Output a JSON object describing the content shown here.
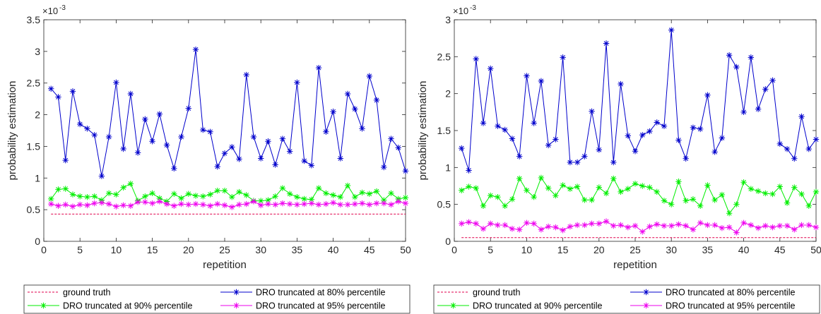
{
  "chart_data": [
    {
      "type": "line",
      "xlabel": "repetition",
      "ylabel": "probability estimation",
      "exponent_label": "×10",
      "exponent_power": "-3",
      "xlim": [
        0,
        50
      ],
      "ylim": [
        0,
        3.5
      ],
      "xticks": [
        0,
        5,
        10,
        15,
        20,
        25,
        30,
        35,
        40,
        45,
        50
      ],
      "yticks": [
        0,
        0.5,
        1,
        1.5,
        2,
        2.5,
        3,
        3.5
      ],
      "ytick_labels": [
        "0",
        "0.5",
        "1",
        "1.5",
        "2",
        "2.5",
        "3",
        "3.5"
      ],
      "grid": false,
      "legend_position": "bottom",
      "x": [
        1,
        2,
        3,
        4,
        5,
        6,
        7,
        8,
        9,
        10,
        11,
        12,
        13,
        14,
        15,
        16,
        17,
        18,
        19,
        20,
        21,
        22,
        23,
        24,
        25,
        26,
        27,
        28,
        29,
        30,
        31,
        32,
        33,
        34,
        35,
        36,
        37,
        38,
        39,
        40,
        41,
        42,
        43,
        44,
        45,
        46,
        47,
        48,
        49,
        50
      ],
      "series": [
        {
          "name": "ground truth",
          "color": "#e0004c",
          "style": "dashed",
          "marker": "none",
          "values": [
            0.43,
            0.43,
            0.43,
            0.43,
            0.43,
            0.43,
            0.43,
            0.43,
            0.43,
            0.43,
            0.43,
            0.43,
            0.43,
            0.43,
            0.43,
            0.43,
            0.43,
            0.43,
            0.43,
            0.43,
            0.43,
            0.43,
            0.43,
            0.43,
            0.43,
            0.43,
            0.43,
            0.43,
            0.43,
            0.43,
            0.43,
            0.43,
            0.43,
            0.43,
            0.43,
            0.43,
            0.43,
            0.43,
            0.43,
            0.43,
            0.43,
            0.43,
            0.43,
            0.43,
            0.43,
            0.43,
            0.43,
            0.43,
            0.43,
            0.43
          ]
        },
        {
          "name": "DRO truncated at 80% percentile",
          "color": "#0000cc",
          "style": "solid",
          "marker": "star",
          "values": [
            2.41,
            2.28,
            1.28,
            2.37,
            1.85,
            1.78,
            1.68,
            1.03,
            1.65,
            2.51,
            1.46,
            2.33,
            1.4,
            1.93,
            1.58,
            2.01,
            1.52,
            1.15,
            1.65,
            2.1,
            3.03,
            1.76,
            1.73,
            1.18,
            1.39,
            1.49,
            1.3,
            2.63,
            1.65,
            1.31,
            1.58,
            1.21,
            1.62,
            1.42,
            2.51,
            1.27,
            1.2,
            2.74,
            1.73,
            2.05,
            1.31,
            2.33,
            2.09,
            1.78,
            2.61,
            2.23,
            1.17,
            1.62,
            1.48,
            1.11
          ]
        },
        {
          "name": "DRO truncated at 90% percentile",
          "color": "#00ee00",
          "style": "solid",
          "marker": "star",
          "values": [
            0.67,
            0.82,
            0.83,
            0.74,
            0.71,
            0.7,
            0.71,
            0.65,
            0.76,
            0.74,
            0.85,
            0.91,
            0.64,
            0.71,
            0.76,
            0.68,
            0.63,
            0.75,
            0.68,
            0.75,
            0.72,
            0.71,
            0.74,
            0.8,
            0.8,
            0.7,
            0.78,
            0.73,
            0.64,
            0.64,
            0.65,
            0.71,
            0.84,
            0.75,
            0.7,
            0.67,
            0.66,
            0.84,
            0.76,
            0.73,
            0.7,
            0.88,
            0.7,
            0.77,
            0.75,
            0.79,
            0.65,
            0.76,
            0.67,
            0.69
          ]
        },
        {
          "name": "DRO truncated at 95% percentile",
          "color": "#ee00ee",
          "style": "solid",
          "marker": "star",
          "values": [
            0.59,
            0.56,
            0.58,
            0.55,
            0.58,
            0.57,
            0.6,
            0.61,
            0.59,
            0.55,
            0.57,
            0.56,
            0.62,
            0.62,
            0.6,
            0.63,
            0.59,
            0.56,
            0.59,
            0.58,
            0.59,
            0.58,
            0.56,
            0.59,
            0.57,
            0.54,
            0.58,
            0.59,
            0.63,
            0.57,
            0.59,
            0.58,
            0.6,
            0.59,
            0.58,
            0.59,
            0.6,
            0.58,
            0.59,
            0.61,
            0.58,
            0.58,
            0.59,
            0.6,
            0.58,
            0.6,
            0.6,
            0.58,
            0.63,
            0.6
          ]
        }
      ]
    },
    {
      "type": "line",
      "xlabel": "repetition",
      "ylabel": "probability estimation",
      "exponent_label": "×10",
      "exponent_power": "-3",
      "xlim": [
        0,
        50
      ],
      "ylim": [
        0,
        3
      ],
      "xticks": [
        0,
        5,
        10,
        15,
        20,
        25,
        30,
        35,
        40,
        45,
        50
      ],
      "yticks": [
        0,
        0.5,
        1,
        1.5,
        2,
        2.5,
        3
      ],
      "ytick_labels": [
        "0",
        "0.5",
        "1",
        "1.5",
        "2",
        "2.5",
        "3"
      ],
      "grid": false,
      "legend_position": "bottom",
      "x": [
        1,
        2,
        3,
        4,
        5,
        6,
        7,
        8,
        9,
        10,
        11,
        12,
        13,
        14,
        15,
        16,
        17,
        18,
        19,
        20,
        21,
        22,
        23,
        24,
        25,
        26,
        27,
        28,
        29,
        30,
        31,
        32,
        33,
        34,
        35,
        36,
        37,
        38,
        39,
        40,
        41,
        42,
        43,
        44,
        45,
        46,
        47,
        48,
        49,
        50
      ],
      "series": [
        {
          "name": "ground truth",
          "color": "#e0004c",
          "style": "dashed",
          "marker": "none",
          "values": [
            0.05,
            0.05,
            0.05,
            0.05,
            0.05,
            0.05,
            0.05,
            0.05,
            0.05,
            0.05,
            0.05,
            0.05,
            0.05,
            0.05,
            0.05,
            0.05,
            0.05,
            0.05,
            0.05,
            0.05,
            0.05,
            0.05,
            0.05,
            0.05,
            0.05,
            0.05,
            0.05,
            0.05,
            0.05,
            0.05,
            0.05,
            0.05,
            0.05,
            0.05,
            0.05,
            0.05,
            0.05,
            0.05,
            0.05,
            0.05,
            0.05,
            0.05,
            0.05,
            0.05,
            0.05,
            0.05,
            0.05,
            0.05,
            0.05,
            0.05
          ]
        },
        {
          "name": "DRO truncated at 80% percentile",
          "color": "#0000cc",
          "style": "solid",
          "marker": "star",
          "values": [
            1.26,
            0.96,
            2.47,
            1.6,
            2.34,
            1.56,
            1.51,
            1.39,
            1.15,
            2.24,
            1.6,
            2.17,
            1.3,
            1.38,
            2.49,
            1.07,
            1.07,
            1.15,
            1.76,
            1.24,
            2.68,
            1.07,
            2.13,
            1.43,
            1.22,
            1.44,
            1.49,
            1.61,
            1.56,
            2.86,
            1.37,
            1.12,
            1.54,
            1.52,
            1.98,
            1.21,
            1.4,
            2.52,
            2.36,
            1.75,
            2.49,
            1.79,
            2.06,
            2.18,
            1.32,
            1.25,
            1.12,
            1.69,
            1.25,
            1.38
          ]
        },
        {
          "name": "DRO truncated at 90% percentile",
          "color": "#00ee00",
          "style": "solid",
          "marker": "star",
          "values": [
            0.69,
            0.74,
            0.72,
            0.48,
            0.62,
            0.6,
            0.48,
            0.57,
            0.85,
            0.69,
            0.6,
            0.86,
            0.72,
            0.62,
            0.76,
            0.71,
            0.74,
            0.56,
            0.56,
            0.73,
            0.65,
            0.85,
            0.67,
            0.71,
            0.78,
            0.75,
            0.73,
            0.67,
            0.55,
            0.5,
            0.81,
            0.55,
            0.57,
            0.48,
            0.76,
            0.56,
            0.63,
            0.38,
            0.5,
            0.8,
            0.71,
            0.68,
            0.65,
            0.64,
            0.74,
            0.52,
            0.73,
            0.64,
            0.48,
            0.67
          ]
        },
        {
          "name": "DRO truncated at 95% percentile",
          "color": "#ee00ee",
          "style": "solid",
          "marker": "star",
          "values": [
            0.24,
            0.26,
            0.24,
            0.17,
            0.24,
            0.22,
            0.22,
            0.17,
            0.16,
            0.25,
            0.24,
            0.16,
            0.2,
            0.19,
            0.15,
            0.2,
            0.22,
            0.22,
            0.24,
            0.24,
            0.27,
            0.21,
            0.22,
            0.19,
            0.21,
            0.13,
            0.2,
            0.23,
            0.21,
            0.21,
            0.23,
            0.21,
            0.16,
            0.25,
            0.22,
            0.22,
            0.18,
            0.19,
            0.12,
            0.25,
            0.22,
            0.18,
            0.21,
            0.19,
            0.21,
            0.21,
            0.16,
            0.22,
            0.22,
            0.19
          ]
        }
      ]
    }
  ]
}
